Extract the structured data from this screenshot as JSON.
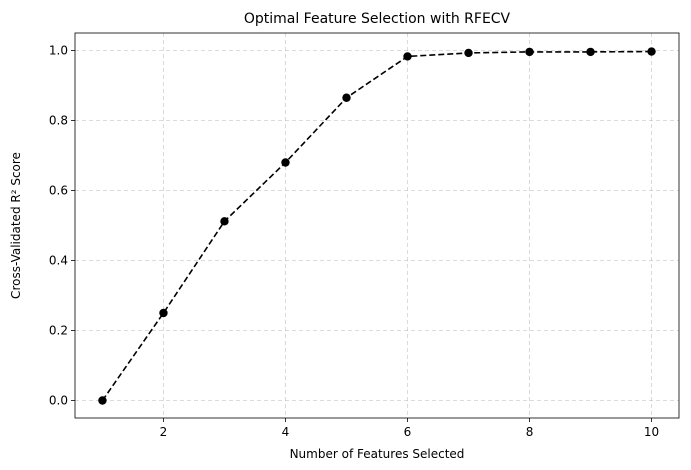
{
  "chart_data": {
    "type": "line",
    "title": "Optimal Feature Selection with RFECV",
    "xlabel": "Number of Features Selected",
    "ylabel": "Cross-Validated R² Score",
    "x": [
      1,
      2,
      3,
      4,
      5,
      6,
      7,
      8,
      9,
      10
    ],
    "series": [
      {
        "values": [
          0.0,
          0.25,
          0.512,
          0.68,
          0.865,
          0.983,
          0.993,
          0.996,
          0.996,
          0.997
        ],
        "color": "#000000",
        "line_style": "dashed",
        "marker": "circle"
      }
    ],
    "xlim": [
      0.55,
      10.45
    ],
    "ylim": [
      -0.05,
      1.05
    ],
    "xticks": [
      2,
      4,
      6,
      8,
      10
    ],
    "yticks": [
      0.0,
      0.2,
      0.4,
      0.6,
      0.8,
      1.0
    ],
    "xtick_labels": [
      "2",
      "4",
      "6",
      "8",
      "10"
    ],
    "ytick_labels": [
      "0.0",
      "0.2",
      "0.4",
      "0.6",
      "0.8",
      "1.0"
    ],
    "grid": true
  }
}
